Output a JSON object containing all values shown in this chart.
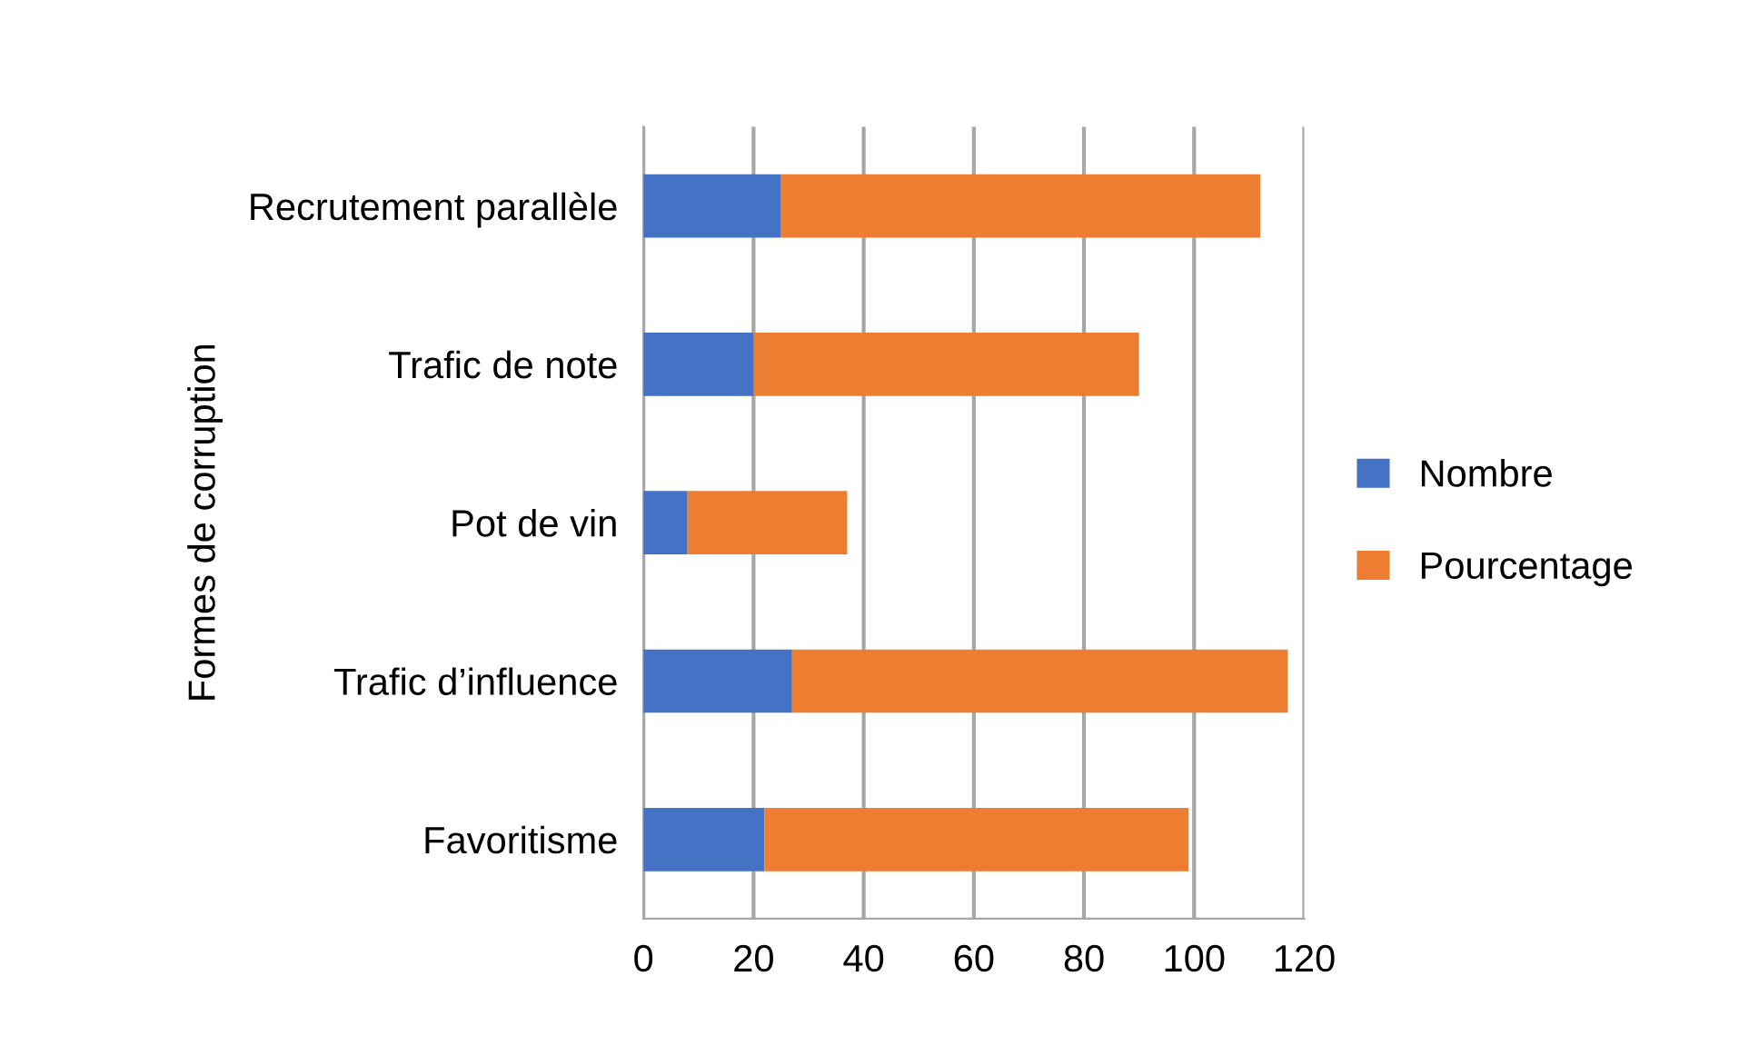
{
  "chart_data": {
    "type": "bar",
    "orientation": "horizontal",
    "stacked": true,
    "ylabel": "Formes de corruption",
    "categories": [
      "Recrutement parallèle",
      "Trafic de note",
      "Pot de vin",
      "Trafic d’influence",
      "Favoritisme"
    ],
    "series": [
      {
        "name": "Nombre",
        "color": "#4472c4",
        "values": [
          25,
          20,
          8,
          27,
          22
        ]
      },
      {
        "name": "Pourcentage",
        "color": "#ed7d31",
        "values": [
          87,
          70,
          29,
          90,
          77
        ]
      }
    ],
    "xlim": [
      0,
      120
    ],
    "xticks": [
      0,
      20,
      40,
      60,
      80,
      100,
      120
    ],
    "grid": "x",
    "legend": "right"
  }
}
